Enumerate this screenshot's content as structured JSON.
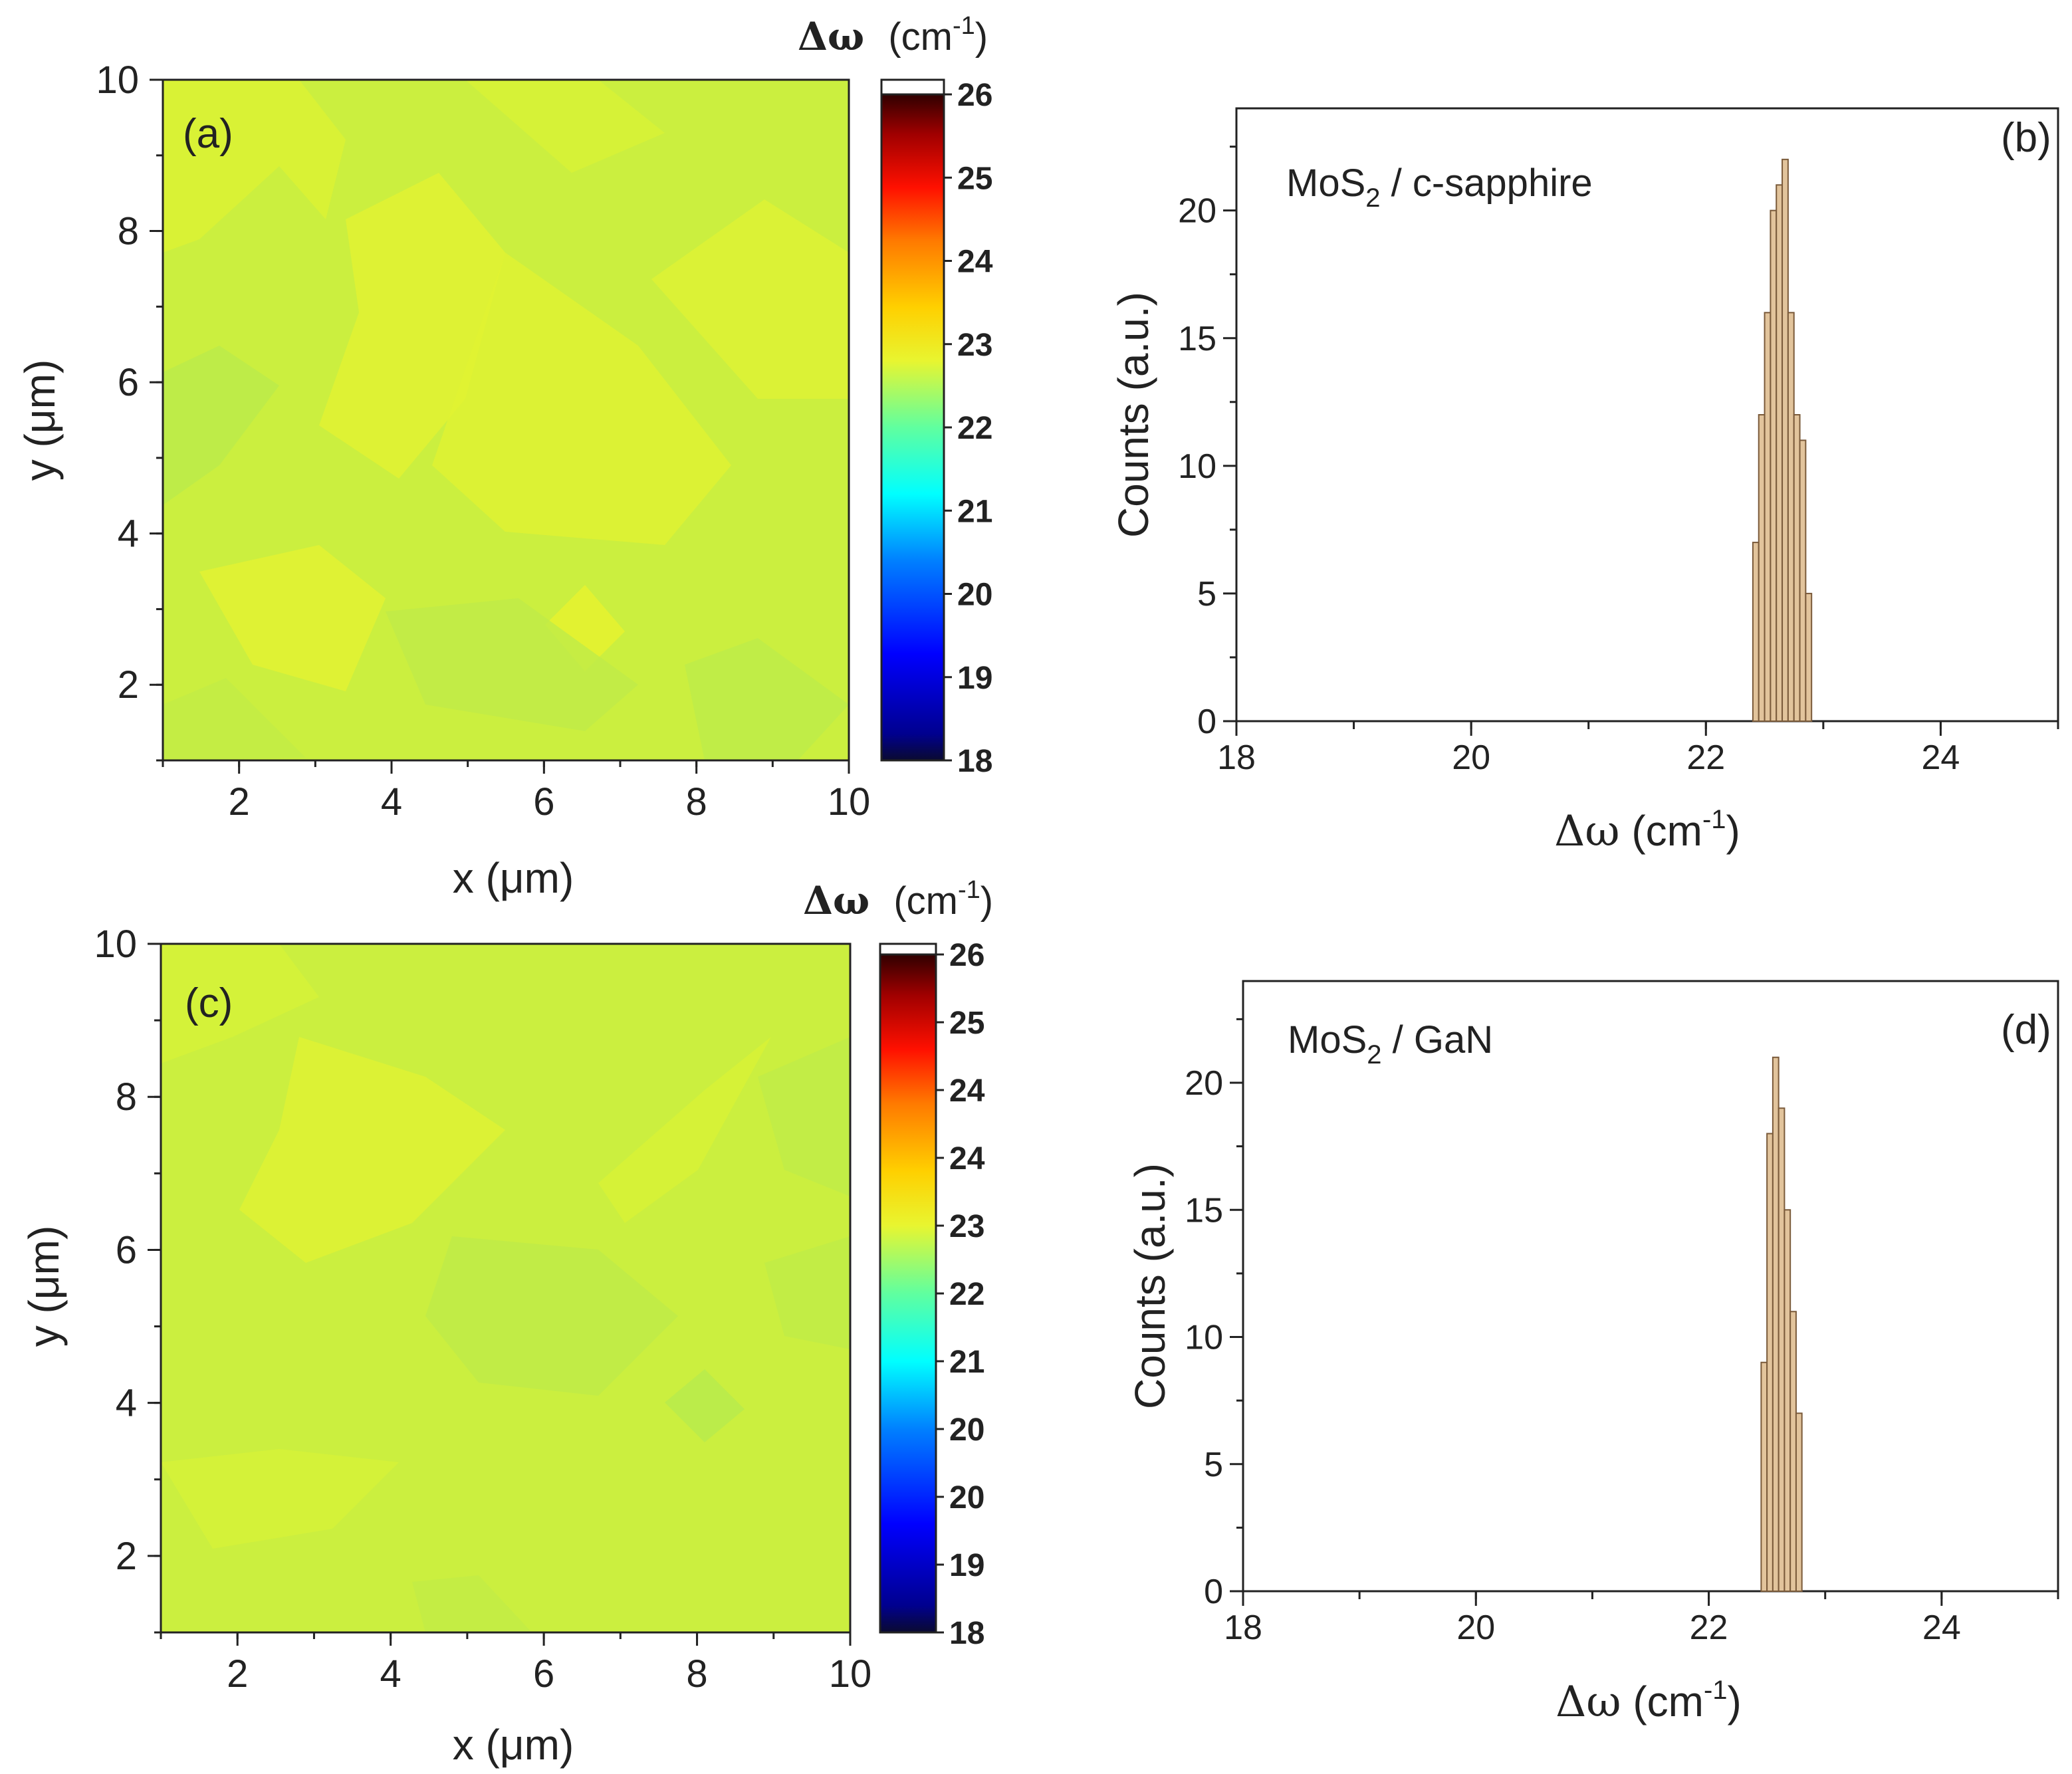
{
  "colors": {
    "axis": "#222222",
    "bar_fill": "#e2c49c",
    "bar_stroke": "#7a5a3a",
    "map_base": "#cbef3f",
    "map_light": "#dcf234",
    "map_green": "#b9eb4c",
    "map_yellow": "#e4f230"
  },
  "chart_data": [
    {
      "id": "a",
      "type": "heatmap",
      "panel_label": "(a)",
      "title": "",
      "xlabel": "x (μm)",
      "ylabel": "y (μm)",
      "xlim": [
        1,
        10
      ],
      "ylim": [
        1,
        10
      ],
      "xticks": [
        "2",
        "4",
        "6",
        "8",
        "10"
      ],
      "yticks": [
        "2",
        "4",
        "6",
        "8",
        "10"
      ],
      "colorbar": {
        "title_symbol": "Δω",
        "title_unit": "(cm",
        "title_exp": "-1",
        "title_close": ")",
        "range": [
          18,
          26
        ],
        "tick_labels": [
          "18",
          "19",
          "20",
          "21",
          "22",
          "23",
          "24",
          "25",
          "26"
        ]
      },
      "values_summary": "map uniform at ≈ 22.4–22.8 cm-1"
    },
    {
      "id": "b",
      "type": "bar",
      "panel_label": "(b)",
      "title": "",
      "annotation_main": "MoS",
      "annotation_sub": "2",
      "annotation_rest": " / c-sapphire",
      "xlabel_symbol": "Δω",
      "xlabel_unit": " (cm",
      "xlabel_exp": "-1",
      "xlabel_close": ")",
      "ylabel": "Counts (a.u.)",
      "xlim": [
        18,
        25
      ],
      "ylim": [
        0,
        24
      ],
      "xticks": [
        "18",
        "20",
        "22",
        "24"
      ],
      "yticks": [
        "0",
        "5",
        "10",
        "15",
        "20"
      ],
      "bin_width": 0.05,
      "bins": [
        {
          "x": 22.425,
          "count": 7
        },
        {
          "x": 22.475,
          "count": 12
        },
        {
          "x": 22.525,
          "count": 16
        },
        {
          "x": 22.575,
          "count": 20
        },
        {
          "x": 22.625,
          "count": 21
        },
        {
          "x": 22.675,
          "count": 22
        },
        {
          "x": 22.725,
          "count": 16
        },
        {
          "x": 22.775,
          "count": 12
        },
        {
          "x": 22.825,
          "count": 11
        },
        {
          "x": 22.875,
          "count": 5
        }
      ]
    },
    {
      "id": "c",
      "type": "heatmap",
      "panel_label": "(c)",
      "title": "",
      "xlabel": "x (μm)",
      "ylabel": "y (μm)",
      "xlim": [
        1,
        10
      ],
      "ylim": [
        1,
        10
      ],
      "xticks": [
        "2",
        "4",
        "6",
        "8",
        "10"
      ],
      "yticks": [
        "2",
        "4",
        "6",
        "8",
        "10"
      ],
      "colorbar": {
        "title_symbol": "Δω",
        "title_unit": "(cm",
        "title_exp": "-1",
        "title_close": ")",
        "range": [
          18,
          26
        ],
        "tick_labels": [
          "18",
          "19",
          "20",
          "20",
          "21",
          "22",
          "23",
          "24",
          "24",
          "25",
          "26"
        ]
      },
      "values_summary": "map uniform at ≈ 22.5–22.7 cm-1"
    },
    {
      "id": "d",
      "type": "bar",
      "panel_label": "(d)",
      "title": "",
      "annotation_main": "MoS",
      "annotation_sub": "2",
      "annotation_rest": " / GaN",
      "xlabel_symbol": "Δω",
      "xlabel_unit": " (cm",
      "xlabel_exp": "-1",
      "xlabel_close": ")",
      "ylabel": "Counts (a.u.)",
      "xlim": [
        18,
        25
      ],
      "ylim": [
        0,
        24
      ],
      "xticks": [
        "18",
        "20",
        "22",
        "24"
      ],
      "yticks": [
        "0",
        "5",
        "10",
        "15",
        "20"
      ],
      "bin_width": 0.05,
      "bins": [
        {
          "x": 22.475,
          "count": 9
        },
        {
          "x": 22.525,
          "count": 18
        },
        {
          "x": 22.575,
          "count": 21
        },
        {
          "x": 22.625,
          "count": 19
        },
        {
          "x": 22.675,
          "count": 15
        },
        {
          "x": 22.725,
          "count": 11
        },
        {
          "x": 22.775,
          "count": 7
        }
      ]
    }
  ]
}
